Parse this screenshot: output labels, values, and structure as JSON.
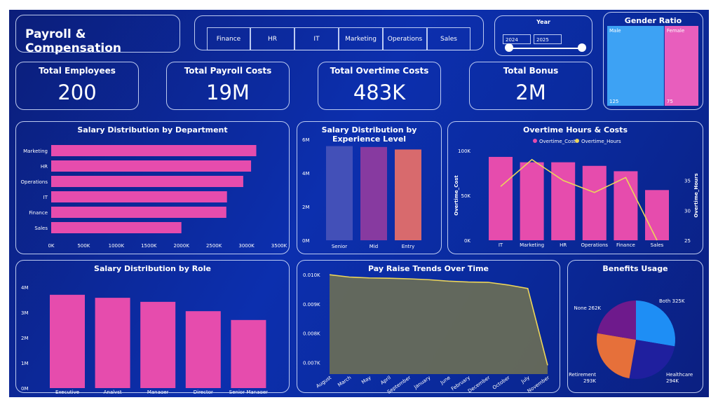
{
  "title": "Payroll & Compensation",
  "slicer": {
    "departments": [
      "Finance",
      "HR",
      "IT",
      "Marketing",
      "Operations",
      "Sales"
    ]
  },
  "year": {
    "label": "Year",
    "start": "2024",
    "end": "2025"
  },
  "kpis": [
    {
      "label": "Total Employees",
      "value": "200"
    },
    {
      "label": "Total Payroll Costs",
      "value": "19M"
    },
    {
      "label": "Total Overtime Costs",
      "value": "483K"
    },
    {
      "label": "Total Bonus",
      "value": "2M"
    }
  ],
  "colors": {
    "bar_pink": "#e64cad",
    "male": "#3da2f4",
    "female": "#e85ebd",
    "line": "#ecd55a"
  },
  "chart_data": [
    {
      "id": "gender",
      "type": "bar",
      "title": "Gender Ratio",
      "categories": [
        "Male",
        "Female"
      ],
      "values": [
        125,
        75
      ],
      "value_labels": [
        "125",
        "75"
      ],
      "colors": [
        "#3da2f4",
        "#e85ebd"
      ]
    },
    {
      "id": "dept",
      "type": "bar",
      "orientation": "horizontal",
      "title": "Salary Distribution by Department",
      "categories": [
        "Marketing",
        "HR",
        "Operations",
        "IT",
        "Finance",
        "Sales"
      ],
      "values": [
        3150000,
        3070000,
        2950000,
        2700000,
        2690000,
        2000000
      ],
      "xlim": [
        0,
        3500000
      ],
      "xticks": [
        "0K",
        "500K",
        "1000K",
        "1500K",
        "2000K",
        "2500K",
        "3000K",
        "3500K"
      ]
    },
    {
      "id": "exp",
      "type": "bar",
      "title": "Salary Distribution by Experience Level",
      "categories": [
        "Senior",
        "Mid",
        "Entry"
      ],
      "values": [
        5600000,
        5550000,
        5400000
      ],
      "ylim": [
        0,
        6000000
      ],
      "yticks": [
        "0M",
        "2M",
        "4M",
        "6M"
      ],
      "colors": [
        "#4350b8",
        "#873aa0",
        "#d86a6d"
      ]
    },
    {
      "id": "overtime",
      "type": "bar+line",
      "title": "Overtime Hours & Costs",
      "categories": [
        "IT",
        "Marketing",
        "HR",
        "Operations",
        "Finance",
        "Sales"
      ],
      "series": [
        {
          "name": "Overtime_Cost",
          "values": [
            93000,
            87000,
            87000,
            83000,
            77000,
            56000
          ]
        },
        {
          "name": "Overtime_Hours",
          "values": [
            34,
            38.5,
            35,
            33,
            35.5,
            25
          ]
        }
      ],
      "ylabel": "Overtime_Cost",
      "y2label": "Overtime_Hours",
      "ylim": [
        0,
        100000
      ],
      "yticks": [
        "0K",
        "50K",
        "100K"
      ],
      "y2lim": [
        25,
        40
      ],
      "y2ticks": [
        "25",
        "30",
        "35"
      ]
    },
    {
      "id": "role",
      "type": "bar",
      "title": "Salary Distribution by Role",
      "categories": [
        "Executive",
        "Analyst",
        "Manager",
        "Director",
        "Senior Manager"
      ],
      "values": [
        3700000,
        3580000,
        3420000,
        3050000,
        2700000
      ],
      "ylim": [
        0,
        4000000
      ],
      "yticks": [
        "0M",
        "1M",
        "2M",
        "3M",
        "4M"
      ]
    },
    {
      "id": "payraise",
      "type": "area",
      "title": "Pay Raise Trends Over Time",
      "categories": [
        "August",
        "March",
        "May",
        "April",
        "September",
        "January",
        "June",
        "February",
        "December",
        "October",
        "July",
        "November"
      ],
      "values": [
        0.01,
        0.00992,
        0.00989,
        0.00988,
        0.00986,
        0.00983,
        0.00978,
        0.00975,
        0.00974,
        0.00965,
        0.00953,
        0.0069
      ],
      "ylim": [
        0.0066,
        0.0101
      ],
      "yticks": [
        "0.007K",
        "0.008K",
        "0.009K",
        "0.010K"
      ]
    },
    {
      "id": "benefits",
      "type": "pie",
      "title": "Benefits Usage",
      "labels": [
        "Both",
        "Healthcare",
        "Retirement",
        "None"
      ],
      "values": [
        325,
        294,
        293,
        262
      ],
      "value_labels": [
        "325K",
        "294K",
        "293K",
        "262K"
      ],
      "colors": [
        "#1e8ef5",
        "#1f1f9e",
        "#e6703a",
        "#6e1a8c"
      ]
    }
  ]
}
